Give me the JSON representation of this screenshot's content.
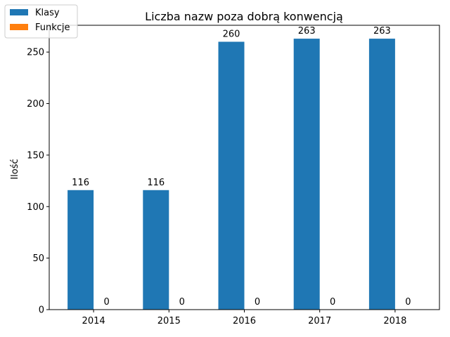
{
  "chart_data": {
    "type": "bar",
    "title": "Liczba nazw poza dobrą konwencją",
    "xlabel": "",
    "ylabel": "Ilość",
    "categories": [
      "2014",
      "2015",
      "2016",
      "2017",
      "2018"
    ],
    "series": [
      {
        "name": "Klasy",
        "values": [
          116,
          116,
          260,
          263,
          263
        ],
        "color": "#1f77b4"
      },
      {
        "name": "Funkcje",
        "values": [
          0,
          0,
          0,
          0,
          0
        ],
        "color": "#ff7f0e"
      }
    ],
    "ylim": [
      0,
      276
    ],
    "yticks": [
      0,
      50,
      100,
      150,
      200,
      250
    ],
    "grid": false,
    "legend_position": "top-left"
  }
}
